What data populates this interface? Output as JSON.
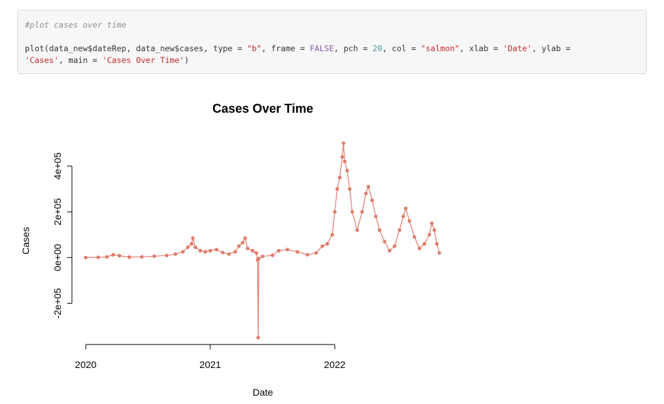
{
  "code": {
    "comment": "#plot cases over time",
    "line1_parts": [
      {
        "t": "plot(data_new$dateRep, data_new$cases, type = ",
        "c": ""
      },
      {
        "t": "\"b\"",
        "c": "str"
      },
      {
        "t": ", frame = ",
        "c": ""
      },
      {
        "t": "FALSE",
        "c": "kw"
      },
      {
        "t": ", pch = ",
        "c": ""
      },
      {
        "t": "20",
        "c": "num"
      },
      {
        "t": ", col = ",
        "c": ""
      },
      {
        "t": "\"salmon\"",
        "c": "str"
      },
      {
        "t": ", xlab = ",
        "c": ""
      },
      {
        "t": "'Date'",
        "c": "str"
      },
      {
        "t": ", ylab =",
        "c": ""
      }
    ],
    "line2_parts": [
      {
        "t": "'Cases'",
        "c": "str"
      },
      {
        "t": ", main = ",
        "c": ""
      },
      {
        "t": "'Cases Over Time'",
        "c": "str"
      },
      {
        "t": ")",
        "c": ""
      }
    ]
  },
  "chart_data": {
    "type": "line",
    "title": "Cases Over Time",
    "xlabel": "Date",
    "ylabel": "Cases",
    "color": "#e07b6a",
    "x_ticks": [
      2020,
      2021,
      2022
    ],
    "x_tick_labels": [
      "2020",
      "2021",
      "2022"
    ],
    "y_ticks": [
      -200000,
      0,
      200000,
      400000
    ],
    "y_tick_labels": [
      "-2e+05",
      "0e+00",
      "2e+05",
      "4e+05"
    ],
    "xlim": [
      2020.0,
      2022.85
    ],
    "ylim": [
      -350000,
      500000
    ],
    "series": [
      {
        "points": [
          [
            2020.0,
            0
          ],
          [
            2020.1,
            800
          ],
          [
            2020.17,
            3000
          ],
          [
            2020.22,
            12000
          ],
          [
            2020.27,
            8000
          ],
          [
            2020.35,
            2000
          ],
          [
            2020.45,
            3000
          ],
          [
            2020.55,
            6000
          ],
          [
            2020.65,
            9000
          ],
          [
            2020.72,
            15000
          ],
          [
            2020.78,
            25000
          ],
          [
            2020.82,
            45000
          ],
          [
            2020.85,
            60000
          ],
          [
            2020.86,
            85000
          ],
          [
            2020.88,
            45000
          ],
          [
            2020.92,
            30000
          ],
          [
            2020.96,
            25000
          ],
          [
            2021.0,
            30000
          ],
          [
            2021.05,
            35000
          ],
          [
            2021.1,
            22000
          ],
          [
            2021.15,
            15000
          ],
          [
            2021.2,
            25000
          ],
          [
            2021.23,
            50000
          ],
          [
            2021.26,
            65000
          ],
          [
            2021.28,
            85000
          ],
          [
            2021.3,
            40000
          ],
          [
            2021.34,
            30000
          ],
          [
            2021.37,
            20000
          ],
          [
            2021.38,
            -10000
          ],
          [
            2021.385,
            -350000
          ],
          [
            2021.39,
            -5000
          ],
          [
            2021.42,
            5000
          ],
          [
            2021.5,
            10000
          ],
          [
            2021.55,
            30000
          ],
          [
            2021.62,
            35000
          ],
          [
            2021.7,
            25000
          ],
          [
            2021.78,
            12000
          ],
          [
            2021.85,
            20000
          ],
          [
            2021.9,
            50000
          ],
          [
            2021.94,
            60000
          ],
          [
            2021.98,
            100000
          ],
          [
            2022.0,
            200000
          ],
          [
            2022.02,
            300000
          ],
          [
            2022.04,
            350000
          ],
          [
            2022.06,
            440000
          ],
          [
            2022.07,
            500000
          ],
          [
            2022.08,
            420000
          ],
          [
            2022.1,
            380000
          ],
          [
            2022.12,
            300000
          ],
          [
            2022.14,
            200000
          ],
          [
            2022.18,
            120000
          ],
          [
            2022.22,
            200000
          ],
          [
            2022.25,
            280000
          ],
          [
            2022.27,
            310000
          ],
          [
            2022.3,
            250000
          ],
          [
            2022.33,
            180000
          ],
          [
            2022.36,
            120000
          ],
          [
            2022.4,
            70000
          ],
          [
            2022.44,
            30000
          ],
          [
            2022.48,
            50000
          ],
          [
            2022.52,
            120000
          ],
          [
            2022.55,
            180000
          ],
          [
            2022.57,
            215000
          ],
          [
            2022.6,
            160000
          ],
          [
            2022.64,
            90000
          ],
          [
            2022.68,
            40000
          ],
          [
            2022.72,
            60000
          ],
          [
            2022.76,
            100000
          ],
          [
            2022.78,
            150000
          ],
          [
            2022.8,
            120000
          ],
          [
            2022.82,
            60000
          ],
          [
            2022.84,
            20000
          ]
        ]
      }
    ]
  }
}
